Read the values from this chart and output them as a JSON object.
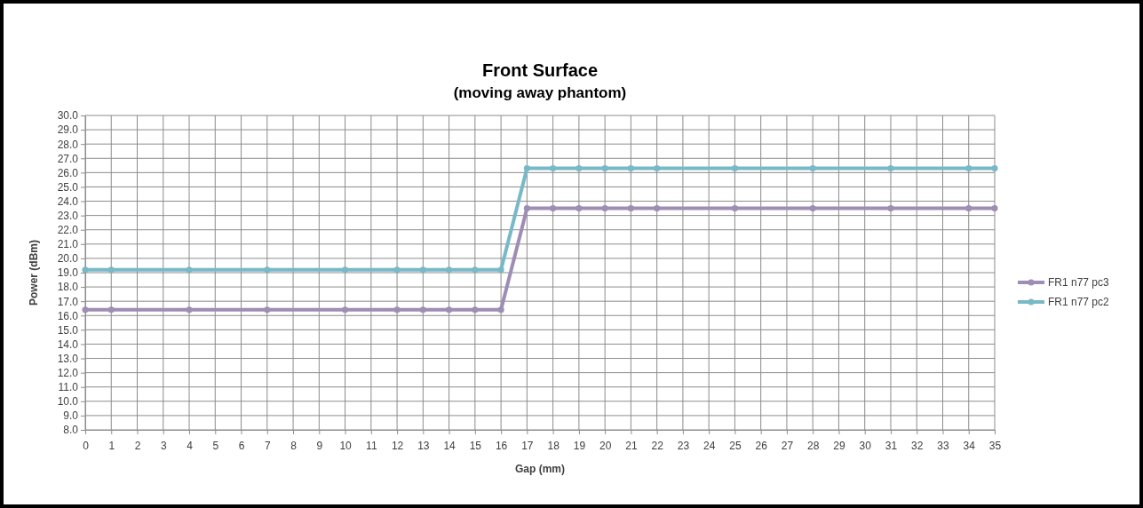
{
  "chart_data": {
    "type": "line",
    "title": "Front Surface",
    "subtitle": "(moving away phantom)",
    "xlabel": "Gap (mm)",
    "ylabel": "Power (dBm)",
    "x": [
      0,
      1,
      4,
      7,
      10,
      12,
      13,
      14,
      15,
      16,
      17,
      18,
      19,
      20,
      21,
      22,
      25,
      28,
      31,
      34,
      35
    ],
    "series": [
      {
        "name": "FR1 n77 pc3",
        "color": "#9e8db4",
        "values": [
          16.4,
          16.4,
          16.4,
          16.4,
          16.4,
          16.4,
          16.4,
          16.4,
          16.4,
          16.4,
          23.5,
          23.5,
          23.5,
          23.5,
          23.5,
          23.5,
          23.5,
          23.5,
          23.5,
          23.5,
          23.5
        ]
      },
      {
        "name": "FR1 n77 pc2",
        "color": "#78b9c8",
        "values": [
          19.2,
          19.2,
          19.2,
          19.2,
          19.2,
          19.2,
          19.2,
          19.2,
          19.2,
          19.2,
          26.3,
          26.3,
          26.3,
          26.3,
          26.3,
          26.3,
          26.3,
          26.3,
          26.3,
          26.3,
          26.3
        ]
      }
    ],
    "xlim": [
      0,
      35
    ],
    "xticks": [
      0,
      1,
      2,
      3,
      4,
      5,
      6,
      7,
      8,
      9,
      10,
      11,
      12,
      13,
      14,
      15,
      16,
      17,
      18,
      19,
      20,
      21,
      22,
      23,
      24,
      25,
      26,
      27,
      28,
      29,
      30,
      31,
      32,
      33,
      34,
      35
    ],
    "ylim": [
      8,
      30
    ],
    "yticks": [
      {
        "value": 8,
        "label": "8.0"
      },
      {
        "value": 9,
        "label": "9.0"
      },
      {
        "value": 10,
        "label": "10.0"
      },
      {
        "value": 11,
        "label": "11.0"
      },
      {
        "value": 12,
        "label": "12.0"
      },
      {
        "value": 13,
        "label": "13.0"
      },
      {
        "value": 14,
        "label": "14.0"
      },
      {
        "value": 15,
        "label": "15.0"
      },
      {
        "value": 16,
        "label": "16.0"
      },
      {
        "value": 17,
        "label": "17.0"
      },
      {
        "value": 18,
        "label": "18.0"
      },
      {
        "value": 19,
        "label": "19.0"
      },
      {
        "value": 20,
        "label": "20.0"
      },
      {
        "value": 21,
        "label": "21.0"
      },
      {
        "value": 22,
        "label": "22.0"
      },
      {
        "value": 23,
        "label": "23.0"
      },
      {
        "value": 24,
        "label": "24.0"
      },
      {
        "value": 25,
        "label": "25.0"
      },
      {
        "value": 26,
        "label": "26.0"
      },
      {
        "value": 27,
        "label": "27.0"
      },
      {
        "value": 28,
        "label": "28.0"
      },
      {
        "value": 29,
        "label": "29.0"
      },
      {
        "value": 30,
        "label": "30.0"
      }
    ],
    "grid": true,
    "legend": "right",
    "marker": "circle",
    "line_style": "solid"
  }
}
